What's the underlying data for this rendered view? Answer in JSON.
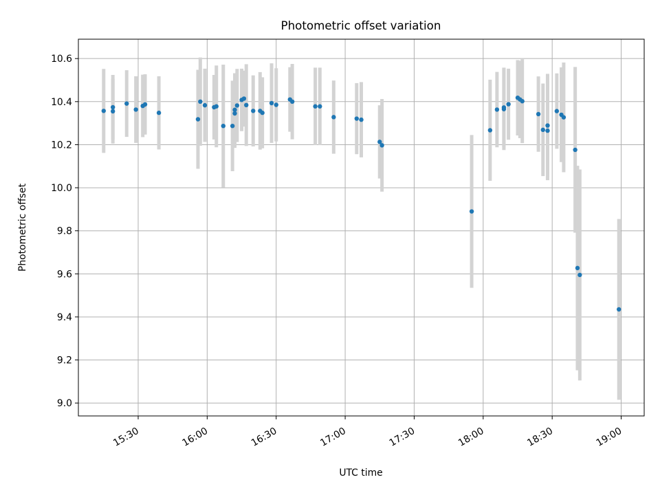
{
  "chart_data": {
    "type": "scatter",
    "title": "Photometric offset variation",
    "xlabel": "UTC time",
    "ylabel": "Photometric offset",
    "xlim": [
      "15:04",
      "19:10"
    ],
    "ylim": [
      8.94,
      10.69
    ],
    "x_ticks": [
      "15:30",
      "16:00",
      "16:30",
      "17:00",
      "17:30",
      "18:00",
      "18:30",
      "19:00"
    ],
    "y_ticks": [
      "9.0",
      "9.2",
      "9.4",
      "9.6",
      "9.8",
      "10.0",
      "10.2",
      "10.4",
      "10.6"
    ],
    "grid": true,
    "legend": "none",
    "colors": {
      "point": "#1f77b4",
      "errorbar": "#d3d3d3",
      "grid": "#b0b0b0",
      "axes": "#000000"
    },
    "series": [
      {
        "x": [
          "15:15",
          "15:19",
          "15:19",
          "15:25",
          "15:29",
          "15:32",
          "15:33",
          "15:39",
          "15:56",
          "15:57",
          "15:59",
          "16:03",
          "16:04",
          "16:07",
          "16:11",
          "16:12",
          "16:12",
          "16:13",
          "16:15",
          "16:16",
          "16:17",
          "16:20",
          "16:23",
          "16:24",
          "16:28",
          "16:30",
          "16:36",
          "16:37",
          "16:47",
          "16:49",
          "16:55",
          "17:05",
          "17:07",
          "17:15",
          "17:16",
          "17:55",
          "18:03",
          "18:06",
          "18:09",
          "18:09",
          "18:11",
          "18:15",
          "18:16",
          "18:17",
          "18:24",
          "18:26",
          "18:28",
          "18:28",
          "18:32",
          "18:34",
          "18:35",
          "18:40",
          "18:41",
          "18:42",
          "18:59"
        ],
        "y": [
          10.357,
          10.374,
          10.355,
          10.391,
          10.363,
          10.38,
          10.387,
          10.348,
          10.318,
          10.4,
          10.383,
          10.374,
          10.378,
          10.287,
          10.287,
          10.345,
          10.362,
          10.382,
          10.408,
          10.414,
          10.384,
          10.357,
          10.357,
          10.348,
          10.393,
          10.385,
          10.41,
          10.4,
          10.378,
          10.378,
          10.328,
          10.321,
          10.316,
          10.213,
          10.197,
          9.89,
          10.267,
          10.363,
          10.365,
          10.373,
          10.388,
          10.418,
          10.41,
          10.402,
          10.342,
          10.269,
          10.265,
          10.289,
          10.356,
          10.339,
          10.327,
          10.176,
          9.627,
          9.595,
          9.435
        ],
        "yerr": [
          0.195,
          0.15,
          0.15,
          0.155,
          0.155,
          0.145,
          0.14,
          0.17,
          0.23,
          0.205,
          0.17,
          0.15,
          0.19,
          0.285,
          0.21,
          0.16,
          0.17,
          0.17,
          0.145,
          0.13,
          0.19,
          0.165,
          0.18,
          0.165,
          0.185,
          0.17,
          0.15,
          0.175,
          0.18,
          0.18,
          0.17,
          0.165,
          0.175,
          0.17,
          0.215,
          0.355,
          0.235,
          0.175,
          0.19,
          0.185,
          0.165,
          0.175,
          0.18,
          0.195,
          0.175,
          0.215,
          0.23,
          0.24,
          0.175,
          0.22,
          0.255,
          0.385,
          0.475,
          0.49,
          0.42
        ]
      }
    ]
  }
}
